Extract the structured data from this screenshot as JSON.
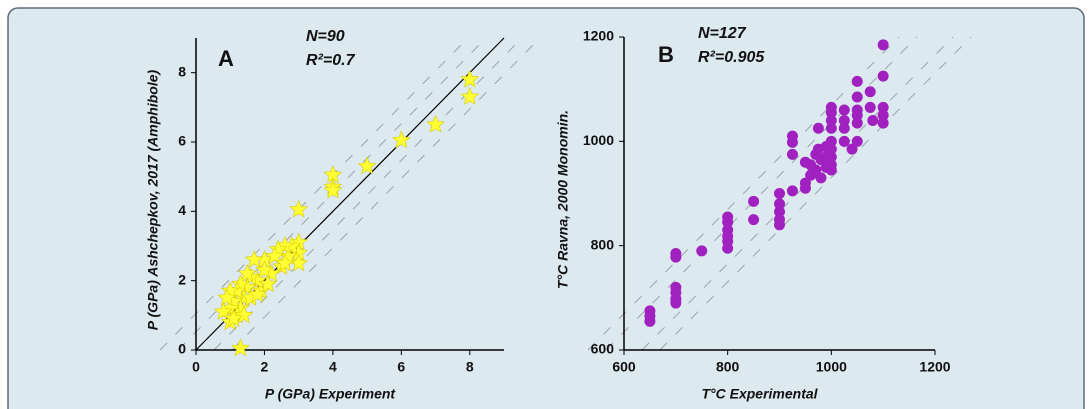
{
  "chart_data": [
    {
      "type": "scatter",
      "title": "A",
      "annotations": [
        "N=90",
        "R²=0.7"
      ],
      "xlabel": "P (GPa) Experiment",
      "ylabel": "P (GPa) Ashchepkov, 2017 (Amphibole)",
      "color": "#ffff33",
      "marker": "star",
      "x": [
        8,
        8,
        7,
        6,
        5,
        4,
        4,
        4,
        3,
        3,
        3,
        3,
        2.8,
        2.7,
        2.6,
        2.5,
        2.4,
        2.2,
        2,
        2,
        1.9,
        1.8,
        1.7,
        1.6,
        1.5,
        1.5,
        1.4,
        1.3,
        1.3,
        1.2,
        1.2,
        1.1,
        1.0,
        1.0,
        1.0,
        0.9,
        0.8,
        1.3,
        1.6,
        2.1,
        2.3,
        1.4,
        1.1,
        1.8,
        2.6
      ],
      "y": [
        7.8,
        7.3,
        6.5,
        6.05,
        5.3,
        5.05,
        4.7,
        4.6,
        4.05,
        3.1,
        2.8,
        2.5,
        3.0,
        2.7,
        3.0,
        2.4,
        2.9,
        2.2,
        2.6,
        2.3,
        1.7,
        2.0,
        2.6,
        2.1,
        2.2,
        1.8,
        1.5,
        1.9,
        1.2,
        1.7,
        1.0,
        1.4,
        1.7,
        1.2,
        0.8,
        1.5,
        1.1,
        0.05,
        1.5,
        1.9,
        2.7,
        1.0,
        0.9,
        1.6,
        2.5
      ],
      "xlim": [
        0,
        9
      ],
      "ylim": [
        0,
        9
      ],
      "xticks": [
        0,
        2,
        4,
        6,
        8
      ],
      "yticks": [
        0,
        2,
        4,
        6,
        8
      ]
    },
    {
      "type": "scatter",
      "title": "B",
      "annotations": [
        "N=127",
        "R²=0.905"
      ],
      "xlabel": "T°C Experimental",
      "ylabel": "T°C Ravna, 2000 Monomin.",
      "color": "#a020c0",
      "marker": "circle",
      "x": [
        650,
        650,
        650,
        700,
        700,
        700,
        700,
        700,
        700,
        750,
        800,
        800,
        800,
        800,
        800,
        800,
        850,
        850,
        900,
        900,
        900,
        900,
        900,
        925,
        925,
        925,
        925,
        950,
        950,
        950,
        960,
        960,
        970,
        970,
        975,
        975,
        980,
        980,
        990,
        990,
        990,
        1000,
        1000,
        1000,
        1000,
        1000,
        1000,
        1000,
        1000,
        1000,
        1025,
        1025,
        1025,
        1025,
        1040,
        1050,
        1050,
        1050,
        1050,
        1050,
        1075,
        1075,
        1100,
        1100,
        1100,
        1100,
        1100,
        1050,
        1080
      ],
      "y": [
        675,
        665,
        655,
        785,
        778,
        720,
        710,
        698,
        690,
        790,
        855,
        845,
        830,
        818,
        808,
        795,
        885,
        850,
        900,
        880,
        865,
        850,
        840,
        1010,
        998,
        975,
        905,
        960,
        920,
        910,
        935,
        955,
        975,
        945,
        1025,
        985,
        965,
        930,
        990,
        970,
        950,
        1065,
        1055,
        1040,
        1025,
        1000,
        985,
        970,
        955,
        945,
        1060,
        1040,
        1025,
        1000,
        985,
        1115,
        1085,
        1060,
        1050,
        1000,
        1095,
        1065,
        1185,
        1125,
        1065,
        1050,
        1035,
        1035,
        1040
      ],
      "xlim": [
        600,
        1200
      ],
      "ylim": [
        600,
        1200
      ],
      "xticks": [
        600,
        800,
        1000,
        1200
      ],
      "yticks": [
        600,
        800,
        1000,
        1200
      ]
    }
  ]
}
